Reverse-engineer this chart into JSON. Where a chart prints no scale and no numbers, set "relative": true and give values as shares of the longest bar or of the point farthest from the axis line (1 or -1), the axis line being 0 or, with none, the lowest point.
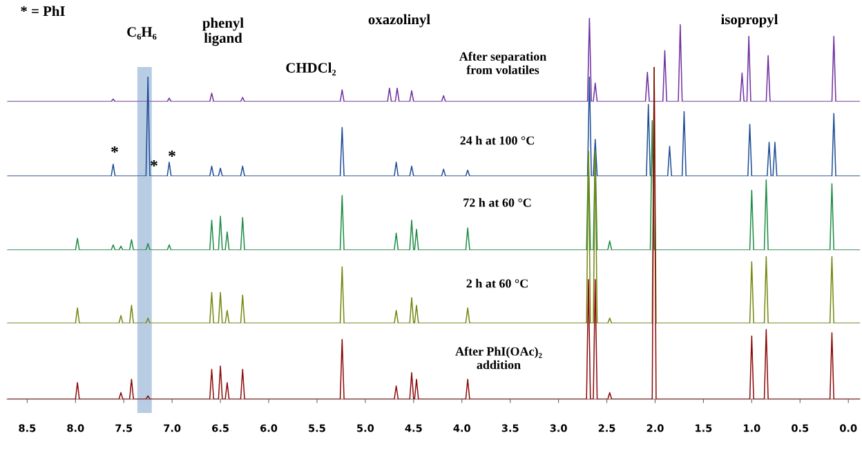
{
  "chart_data": [
    {
      "type": "line",
      "relative": true,
      "tick_labels": false,
      "xlim": [
        8.71,
        -0.12
      ],
      "annotations": [
        "* = PhI",
        "C₆H₆",
        "phenyl\nligand",
        "CHDCl₂",
        "oxazolinyl",
        "isopropyl"
      ],
      "series": [
        {
          "name": "After separation\nfrom volatiles",
          "color": "#7030a0",
          "x": [
            8.7,
            7.63,
            7.61,
            7.59,
            7.05,
            7.03,
            7.01,
            6.61,
            6.59,
            6.57,
            6.29,
            6.27,
            6.25,
            5.26,
            5.24,
            5.22,
            4.77,
            4.75,
            4.73,
            4.69,
            4.67,
            4.65,
            4.54,
            4.52,
            4.5,
            4.21,
            4.19,
            4.17,
            2.7,
            2.68,
            2.66,
            2.64,
            2.62,
            2.6,
            2.1,
            2.08,
            2.06,
            1.92,
            1.9,
            1.88,
            1.76,
            1.74,
            1.72,
            1.12,
            1.1,
            1.08,
            1.05,
            1.03,
            1.01,
            0.85,
            0.83,
            0.81,
            0.17,
            0.15,
            0.13,
            -0.12
          ],
          "values": [
            0,
            0,
            0.03,
            0,
            0,
            0.04,
            0,
            0,
            0.1,
            0,
            0,
            0.05,
            0,
            0,
            0.14,
            0,
            0,
            0.16,
            0,
            0,
            0.16,
            0,
            0,
            0.13,
            0,
            0,
            0.07,
            0,
            0,
            1,
            0,
            0,
            0.22,
            0,
            0,
            0.35,
            0,
            0,
            0.61,
            0,
            0,
            0.92,
            0,
            0,
            0.34,
            0,
            0,
            0.78,
            0,
            0,
            0.55,
            0,
            0,
            0.78,
            0,
            0
          ]
        }
      ]
    },
    {
      "type": "line",
      "relative": true,
      "tick_labels": false,
      "xlim": [
        8.71,
        -0.12
      ],
      "annotations": [
        "*",
        "*",
        "*"
      ],
      "series": [
        {
          "name": "24 h at 100 °C",
          "color": "#1f4e96",
          "x": [
            8.7,
            7.63,
            7.61,
            7.59,
            7.27,
            7.25,
            7.23,
            7.05,
            7.03,
            7.01,
            6.61,
            6.59,
            6.57,
            6.52,
            6.5,
            6.48,
            6.29,
            6.27,
            6.25,
            5.26,
            5.24,
            5.22,
            4.7,
            4.68,
            4.66,
            4.54,
            4.52,
            4.5,
            4.21,
            4.19,
            4.17,
            3.96,
            3.94,
            3.92,
            2.7,
            2.68,
            2.66,
            2.64,
            2.62,
            2.6,
            2.09,
            2.07,
            2.05,
            1.87,
            1.85,
            1.83,
            1.72,
            1.7,
            1.68,
            1.04,
            1.02,
            1.0,
            0.84,
            0.82,
            0.8,
            0.78,
            0.76,
            0.74,
            0.17,
            0.15,
            0.13,
            -0.12
          ],
          "values": [
            0,
            0,
            0.12,
            0,
            0,
            1,
            0,
            0,
            0.14,
            0,
            0,
            0.1,
            0,
            0,
            0.08,
            0,
            0,
            0.1,
            0,
            0,
            0.49,
            0,
            0,
            0.14,
            0,
            0,
            0.1,
            0,
            0,
            0.07,
            0,
            0,
            0.06,
            0,
            0,
            1,
            0,
            0,
            0.37,
            0,
            0,
            0.72,
            0,
            0,
            0.3,
            0,
            0,
            0.65,
            0,
            0,
            0.52,
            0,
            0,
            0.34,
            0,
            0,
            0.34,
            0,
            0,
            0.63,
            0,
            0
          ]
        }
      ]
    },
    {
      "type": "line",
      "relative": true,
      "tick_labels": false,
      "xlim": [
        8.71,
        -0.12
      ],
      "series": [
        {
          "name": "72 h at 60 °C",
          "color": "#1e8c45",
          "x": [
            8.7,
            8.0,
            7.98,
            7.96,
            7.63,
            7.61,
            7.59,
            7.55,
            7.53,
            7.51,
            7.44,
            7.42,
            7.4,
            7.27,
            7.25,
            7.23,
            7.05,
            7.03,
            7.01,
            6.61,
            6.59,
            6.57,
            6.52,
            6.5,
            6.48,
            6.45,
            6.43,
            6.41,
            6.29,
            6.27,
            6.25,
            5.26,
            5.24,
            5.22,
            4.7,
            4.68,
            4.66,
            4.54,
            4.52,
            4.5,
            4.49,
            4.47,
            4.45,
            3.96,
            3.94,
            3.92,
            2.71,
            2.69,
            2.67,
            2.64,
            2.62,
            2.6,
            2.49,
            2.47,
            2.45,
            2.05,
            2.03,
            2.01,
            1.02,
            1.0,
            0.98,
            0.87,
            0.85,
            0.83,
            0.19,
            0.17,
            0.15,
            -0.12
          ],
          "values": [
            0,
            0,
            0.09,
            0,
            0,
            0.04,
            0,
            0,
            0.03,
            0,
            0,
            0.08,
            0,
            0,
            0.05,
            0,
            0,
            0.04,
            0,
            0,
            0.23,
            0,
            0,
            0.26,
            0,
            0,
            0.14,
            0,
            0,
            0.25,
            0,
            0,
            0.42,
            0,
            0,
            0.13,
            0,
            0,
            0.23,
            0,
            0,
            0.16,
            0,
            0,
            0.17,
            0,
            0,
            0.76,
            0,
            0,
            0.77,
            0,
            0,
            0.07,
            0,
            0,
            1,
            0,
            0,
            0.46,
            0,
            0,
            0.54,
            0,
            0,
            0.51,
            0,
            0
          ]
        }
      ]
    },
    {
      "type": "line",
      "relative": true,
      "tick_labels": false,
      "xlim": [
        8.71,
        -0.12
      ],
      "series": [
        {
          "name": "2 h at 60 °C",
          "color": "#76870f",
          "x": [
            8.7,
            8.0,
            7.98,
            7.96,
            7.55,
            7.53,
            7.51,
            7.44,
            7.42,
            7.4,
            7.27,
            7.25,
            7.23,
            6.61,
            6.59,
            6.57,
            6.52,
            6.5,
            6.48,
            6.45,
            6.43,
            6.41,
            6.29,
            6.27,
            6.25,
            5.26,
            5.24,
            5.22,
            4.7,
            4.68,
            4.66,
            4.54,
            4.52,
            4.5,
            4.49,
            4.47,
            4.45,
            3.96,
            3.94,
            3.92,
            2.71,
            2.69,
            2.67,
            2.64,
            2.62,
            2.6,
            2.49,
            2.47,
            2.45,
            2.03,
            2.01,
            1.99,
            1.02,
            1.0,
            0.98,
            0.87,
            0.85,
            0.83,
            0.19,
            0.17,
            0.15,
            -0.12
          ],
          "values": [
            0,
            0,
            0.06,
            0,
            0,
            0.03,
            0,
            0,
            0.07,
            0,
            0,
            0.02,
            0,
            0,
            0.12,
            0,
            0,
            0.12,
            0,
            0,
            0.05,
            0,
            0,
            0.11,
            0,
            0,
            0.22,
            0,
            0,
            0.05,
            0,
            0,
            0.1,
            0,
            0,
            0.07,
            0,
            0,
            0.06,
            0,
            0,
            0.67,
            0,
            0,
            0.67,
            0,
            0,
            0.02,
            0,
            0,
            1,
            0,
            0,
            0.24,
            0,
            0,
            0.26,
            0,
            0,
            0.26,
            0,
            0
          ]
        }
      ]
    },
    {
      "type": "line",
      "relative": true,
      "xlim": [
        8.71,
        -0.12
      ],
      "xticks": [
        {
          "value": 8.5,
          "label": "8.5"
        },
        {
          "value": 8,
          "label": "8.0"
        },
        {
          "value": 7.5,
          "label": "7.5"
        },
        {
          "value": 7,
          "label": "7.0"
        },
        {
          "value": 6.5,
          "label": "6.5"
        },
        {
          "value": 6,
          "label": "6.0"
        },
        {
          "value": 5.5,
          "label": "5.5"
        },
        {
          "value": 5,
          "label": "5.0"
        },
        {
          "value": 4.5,
          "label": "4.5"
        },
        {
          "value": 4,
          "label": "4.0"
        },
        {
          "value": 3.5,
          "label": "3.5"
        },
        {
          "value": 3,
          "label": "3.0"
        },
        {
          "value": 2.5,
          "label": "2.5"
        },
        {
          "value": 2,
          "label": "2.0"
        },
        {
          "value": 1.5,
          "label": "1.5"
        },
        {
          "value": 1,
          "label": "1.0"
        },
        {
          "value": 0.5,
          "label": "0.5"
        },
        {
          "value": 0,
          "label": "0.0"
        }
      ],
      "bands": [
        {
          "axis": "x",
          "from": 7.36,
          "to": 7.21,
          "color": "#b8cce4"
        }
      ],
      "series": [
        {
          "name": "After PhI(OAc)₂\naddition",
          "color": "#8b0a0a",
          "x": [
            8.7,
            8.0,
            7.98,
            7.96,
            7.55,
            7.53,
            7.51,
            7.44,
            7.42,
            7.4,
            7.27,
            7.25,
            7.23,
            6.61,
            6.59,
            6.57,
            6.52,
            6.5,
            6.48,
            6.45,
            6.43,
            6.41,
            6.29,
            6.27,
            6.25,
            5.26,
            5.24,
            5.22,
            4.7,
            4.68,
            4.66,
            4.54,
            4.52,
            4.5,
            4.49,
            4.47,
            4.45,
            3.96,
            3.94,
            3.92,
            2.71,
            2.69,
            2.67,
            2.64,
            2.62,
            2.6,
            2.49,
            2.47,
            2.45,
            2.03,
            2.01,
            1.99,
            1.02,
            1.0,
            0.98,
            0.87,
            0.85,
            0.83,
            0.19,
            0.17,
            0.15,
            -0.12
          ],
          "values": [
            0,
            0,
            0.05,
            0,
            0,
            0.02,
            0,
            0,
            0.06,
            0,
            0,
            0.01,
            0,
            0,
            0.09,
            0,
            0,
            0.1,
            0,
            0,
            0.05,
            0,
            0,
            0.09,
            0,
            0,
            0.18,
            0,
            0,
            0.04,
            0,
            0,
            0.08,
            0,
            0,
            0.06,
            0,
            0,
            0.06,
            0,
            0,
            0.36,
            0,
            0,
            0.36,
            0,
            0,
            0.02,
            0,
            0,
            1,
            0,
            0,
            0.19,
            0,
            0,
            0.21,
            0,
            0,
            0.2,
            0,
            0
          ]
        }
      ]
    }
  ]
}
